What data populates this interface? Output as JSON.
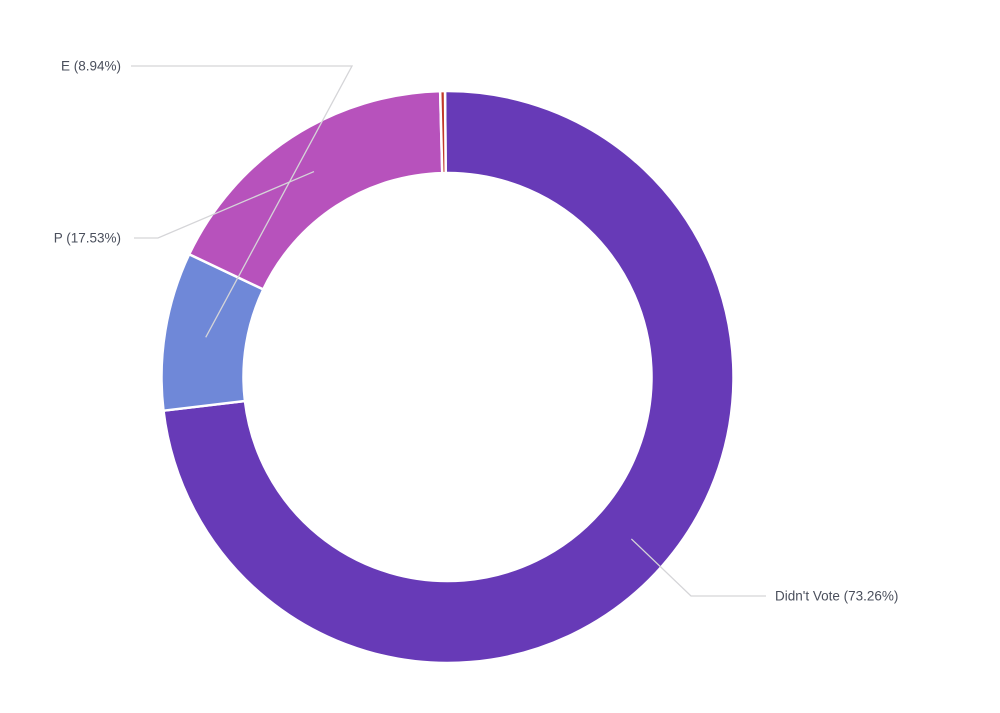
{
  "chart_data": {
    "type": "pie",
    "variant": "donut",
    "categories": [
      "Didn't Vote",
      "E",
      "P",
      "Other"
    ],
    "values": [
      73.26,
      8.94,
      17.53,
      0.27
    ],
    "labels": [
      "Didn't Vote (73.26%)",
      "E (8.94%)",
      "P (17.53%)",
      ""
    ],
    "colors": [
      "#673ab7",
      "#6f88d8",
      "#b752bc",
      "#c0392b"
    ],
    "legend": "none"
  }
}
